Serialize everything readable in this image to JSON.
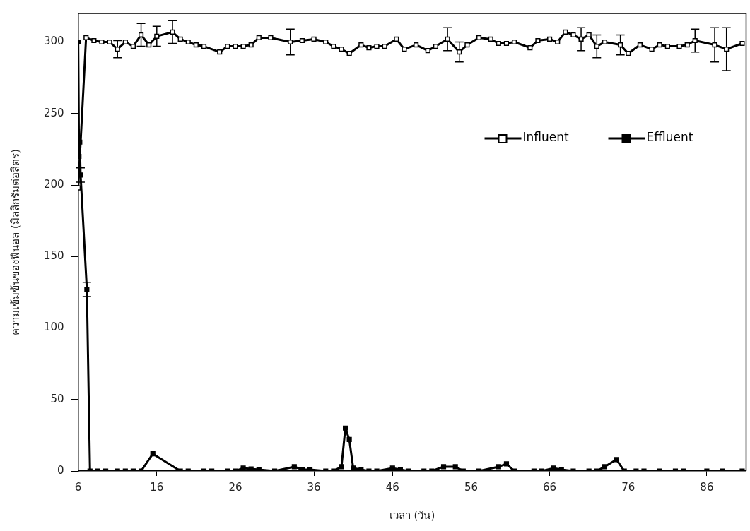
{
  "chart_data": {
    "type": "line",
    "xlabel": "เวลา (วัน)",
    "ylabel": "ความเข้มข้นของฟีนอล (มิลลิกรัมต่อลิตร)",
    "xlim": [
      6,
      91
    ],
    "xticks": [
      6,
      16,
      26,
      36,
      46,
      56,
      66,
      76,
      86
    ],
    "ylim": [
      0,
      320
    ],
    "yticks": [
      0,
      50,
      100,
      150,
      200,
      250,
      300
    ],
    "grid": false,
    "legend": "top right",
    "marker": "square",
    "line_style": "solid",
    "series": [
      {
        "name": "Influent",
        "color": "#000000",
        "x": [
          6,
          7,
          8,
          9,
          10,
          11,
          12,
          13,
          14,
          15,
          16,
          18,
          19,
          20,
          21,
          22,
          24,
          25,
          26,
          27,
          28,
          29,
          30.5,
          33,
          34.5,
          36,
          37.5,
          38.5,
          39.5,
          40.5,
          42,
          43,
          44,
          45,
          46.5,
          47.5,
          49,
          50.5,
          51.5,
          53,
          54.5,
          55.5,
          57,
          58.5,
          59.5,
          60.5,
          61.5,
          63.5,
          64.5,
          66,
          67,
          68,
          69,
          70,
          71,
          72,
          73,
          75,
          76,
          77.5,
          79,
          80,
          81,
          82.5,
          83.5,
          84.5,
          87,
          88.5,
          90.5
        ],
        "values": [
          198,
          303,
          301,
          300,
          300,
          295,
          300,
          297,
          305,
          298,
          304,
          307,
          302,
          300,
          298,
          297,
          293,
          297,
          297,
          297,
          298,
          303,
          303,
          300,
          301,
          302,
          300,
          297,
          295,
          292,
          298,
          296,
          297,
          297,
          302,
          295,
          298,
          294,
          297,
          302,
          293,
          298,
          303,
          302,
          299,
          299,
          300,
          296,
          301,
          302,
          300,
          307,
          305,
          302,
          305,
          297,
          300,
          298,
          292,
          298,
          295,
          298,
          297,
          297,
          298,
          301,
          298,
          295,
          299
        ],
        "errors": [
          null,
          null,
          null,
          null,
          null,
          6,
          null,
          null,
          8,
          null,
          7,
          8,
          null,
          null,
          null,
          null,
          null,
          null,
          null,
          null,
          null,
          null,
          null,
          9,
          null,
          null,
          null,
          null,
          null,
          null,
          null,
          null,
          null,
          null,
          null,
          null,
          null,
          null,
          null,
          8,
          7,
          null,
          null,
          null,
          null,
          null,
          null,
          null,
          null,
          null,
          null,
          null,
          null,
          8,
          null,
          8,
          null,
          7,
          null,
          null,
          null,
          null,
          null,
          null,
          null,
          8,
          12,
          15,
          null
        ]
      },
      {
        "name": "Effluent",
        "color": "#000000",
        "x": [
          6,
          6.1,
          6.2,
          6.3,
          7.1,
          7.5,
          8.5,
          9.5,
          11,
          12,
          13,
          14,
          15.5,
          19,
          20,
          22,
          23,
          25,
          26,
          27,
          28,
          29,
          31,
          33.5,
          34.5,
          35.5,
          37.5,
          38.5,
          39.5,
          40,
          40.5,
          41,
          42,
          43,
          44,
          46,
          47,
          48,
          50,
          51,
          52.5,
          54,
          55,
          57,
          59.5,
          60.5,
          61.5,
          64,
          65,
          66.5,
          67.5,
          69,
          71,
          72,
          73,
          74.5,
          75.5,
          77,
          78,
          80,
          82,
          83,
          86,
          88,
          90.5
        ],
        "values": [
          300,
          220,
          230,
          207,
          127,
          0,
          0,
          0,
          0,
          0,
          0,
          0,
          12,
          0,
          0,
          0,
          0,
          0,
          0,
          2,
          1.5,
          1,
          0,
          3,
          1,
          1,
          0,
          0,
          3,
          30,
          22,
          2,
          1,
          0,
          0,
          2,
          1,
          0,
          0,
          0,
          3,
          3,
          0,
          0,
          3,
          5,
          0,
          0,
          0,
          2,
          1,
          0,
          0,
          0,
          3,
          8,
          0,
          0,
          0,
          0,
          0,
          0,
          0,
          0,
          0
        ],
        "errors": [
          null,
          null,
          null,
          5,
          5,
          null,
          null,
          null,
          null,
          null,
          null,
          null,
          null,
          null,
          null,
          null,
          null,
          null,
          null,
          null,
          null,
          null,
          null,
          null,
          null,
          null,
          null,
          null,
          null,
          null,
          null,
          null,
          null,
          null,
          null,
          null,
          null,
          null,
          null,
          null,
          null,
          null,
          null,
          null,
          null,
          null,
          null,
          null,
          null,
          null,
          null,
          null,
          null,
          null,
          null,
          null,
          null,
          null,
          null,
          null,
          null,
          null,
          null,
          null,
          null
        ]
      }
    ]
  }
}
